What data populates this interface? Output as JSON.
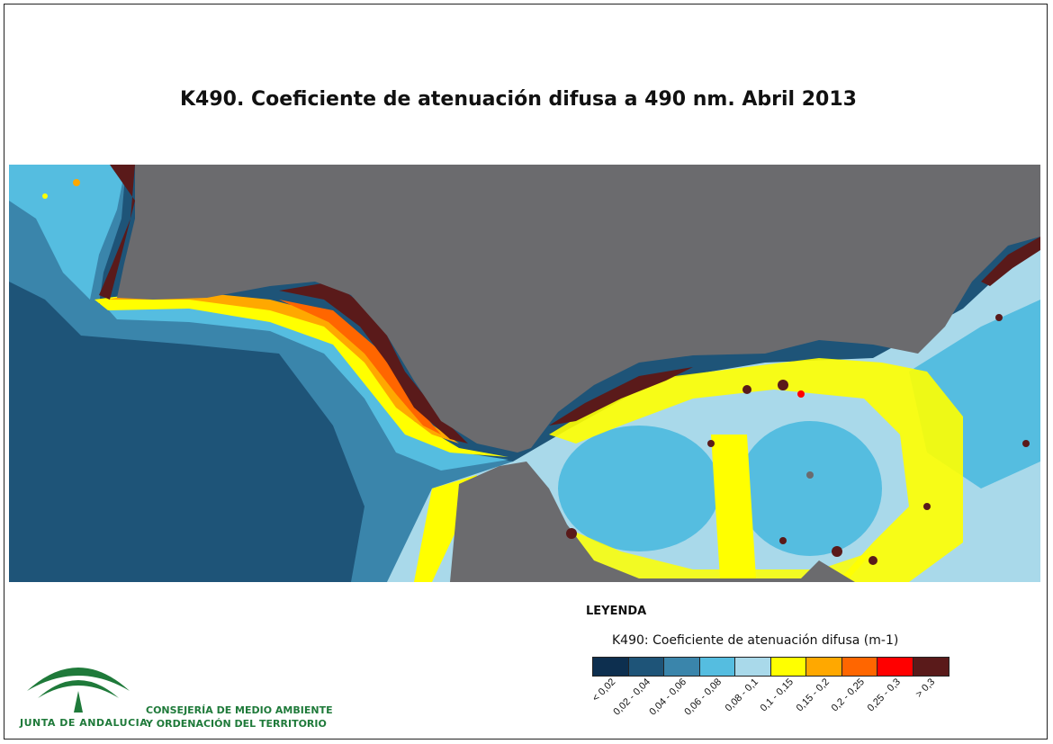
{
  "title": "K490. Coeficiente de atenuación difusa a 490 nm. Abril 2013",
  "legend": {
    "heading": "LEYENDA",
    "subtitle": "K490: Coeficiente de atenuación difusa (m-1)",
    "classes": [
      {
        "label": "< 0,02",
        "color": "#0d2f4f"
      },
      {
        "label": "0,02 - 0,04",
        "color": "#1e5478"
      },
      {
        "label": "0,04 - 0,06",
        "color": "#3a85ab"
      },
      {
        "label": "0,06 - 0,08",
        "color": "#55bde0"
      },
      {
        "label": "0,08 - 0,1",
        "color": "#a9d9ea"
      },
      {
        "label": "0,1 - 0,15",
        "color": "#ffff00"
      },
      {
        "label": "0,15 - 0,2",
        "color": "#ffa800"
      },
      {
        "label": "0,2 - 0,25",
        "color": "#ff6600"
      },
      {
        "label": "0,25 - 0,3",
        "color": "#ff0000"
      },
      {
        "label": "> 0,3",
        "color": "#5a1a1a"
      }
    ]
  },
  "map": {
    "land_color": "#6b6b6e"
  },
  "footer": {
    "org_name": "JUNTA DE ANDALUCIA",
    "dept_line1": "CONSEJERÍA DE MEDIO AMBIENTE",
    "dept_line2": "Y ORDENACIÓN DEL TERRITORIO"
  }
}
